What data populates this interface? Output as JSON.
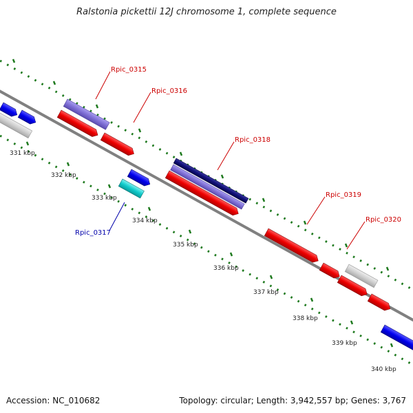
{
  "title": "Ralstonia pickettii 12J chromosome 1, complete sequence",
  "footer": {
    "accession": "Accession: NC_010682",
    "summary": "Topology: circular; Length: 3,942,557 bp; Genes: 3,767"
  },
  "colors": {
    "backbone": "#808080",
    "tick": "#1f7a1f",
    "label_red": "#cc0000",
    "label_blue": "#0000aa"
  },
  "ticks": [
    {
      "label": "331 kbp"
    },
    {
      "label": "332 kbp"
    },
    {
      "label": "333 kbp"
    },
    {
      "label": "334 kbp"
    },
    {
      "label": "335 kbp"
    },
    {
      "label": "336 kbp"
    },
    {
      "label": "337 kbp"
    },
    {
      "label": "338 kbp"
    },
    {
      "label": "339 kbp"
    },
    {
      "label": "340 kbp"
    }
  ],
  "gene_labels": [
    {
      "name": "Rpic_0315",
      "color": "#cc0000"
    },
    {
      "name": "Rpic_0316",
      "color": "#cc0000"
    },
    {
      "name": "Rpic_0317",
      "color": "#0000aa"
    },
    {
      "name": "Rpic_0318",
      "color": "#cc0000"
    },
    {
      "name": "Rpic_0319",
      "color": "#cc0000"
    },
    {
      "name": "Rpic_0320",
      "color": "#cc0000"
    }
  ]
}
